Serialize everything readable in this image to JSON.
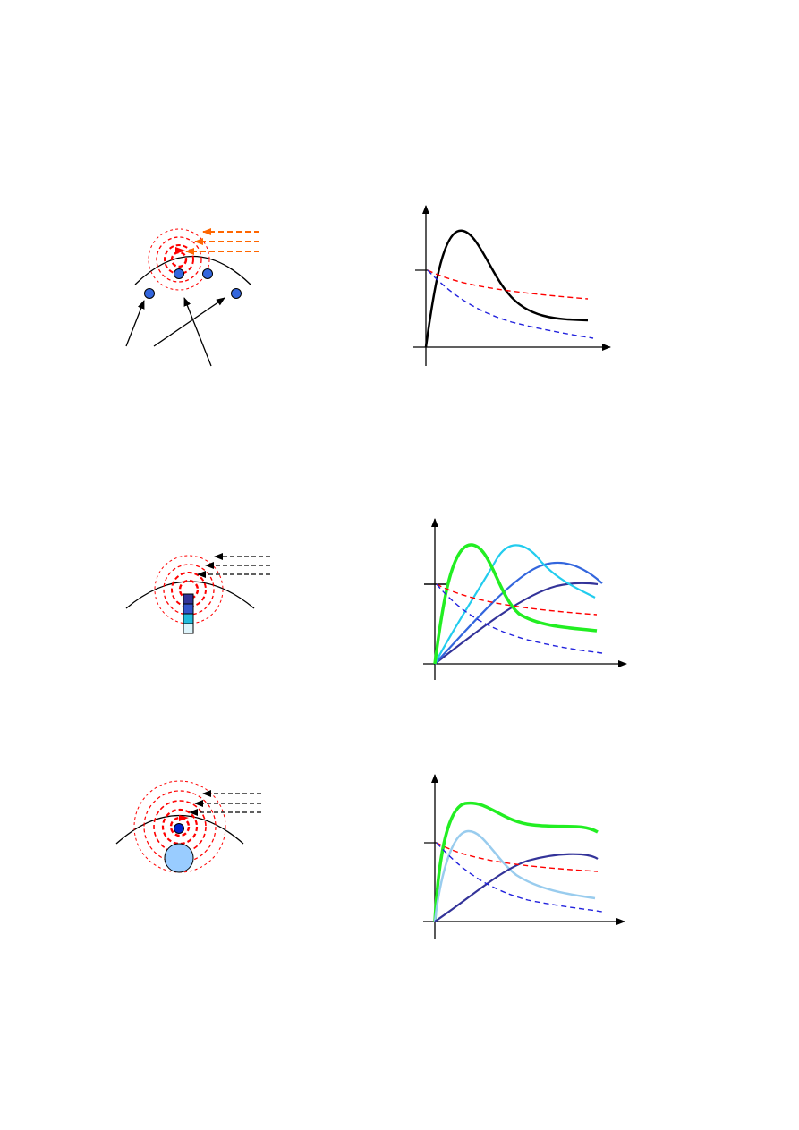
{
  "colors": {
    "background": "#ffffff",
    "outline": "#000000",
    "wave_red": "#ff0000",
    "arrow_orange": "#ff6600",
    "dot_blue": "#3366dd",
    "dot_blue_dark": "#0022cc",
    "curve_black": "#000000",
    "curve_red_dashed": "#ff0000",
    "curve_blue_dashed": "#2222dd",
    "curve_green": "#22ee22",
    "curve_cyan": "#22ccee",
    "curve_royal": "#3366dd",
    "curve_navy": "#333399",
    "curve_lightblue": "#99ccee",
    "stack_1": "#333399",
    "stack_2": "#3355cc",
    "stack_3": "#22bbdd",
    "stack_4": "#ddf4fb",
    "big_circle": "#99ccff"
  },
  "panels": [
    {
      "name": "panel-1",
      "illustration": {
        "wave_rings": 4,
        "incoming_arrows": 3,
        "incoming_arrow_color": "arrow_orange",
        "dots": 4,
        "pointer_arrows": 3
      },
      "graph": {
        "curves": [
          {
            "name": "black-peak",
            "color": "curve_black",
            "dashed": false
          },
          {
            "name": "red-dashed",
            "color": "curve_red_dashed",
            "dashed": true
          },
          {
            "name": "blue-dashed",
            "color": "curve_blue_dashed",
            "dashed": true
          }
        ]
      }
    },
    {
      "name": "panel-2",
      "illustration": {
        "wave_rings": 4,
        "incoming_arrows": 3,
        "incoming_arrow_color": "outline",
        "stacked_blocks": [
          "stack_1",
          "stack_2",
          "stack_3",
          "stack_4"
        ]
      },
      "graph": {
        "curves": [
          {
            "name": "green-peak",
            "color": "curve_green",
            "dashed": false
          },
          {
            "name": "cyan-peak",
            "color": "curve_cyan",
            "dashed": false
          },
          {
            "name": "royal-peak",
            "color": "curve_royal",
            "dashed": false
          },
          {
            "name": "navy-rise",
            "color": "curve_navy",
            "dashed": false
          },
          {
            "name": "red-dashed",
            "color": "curve_red_dashed",
            "dashed": true
          },
          {
            "name": "blue-dashed",
            "color": "curve_blue_dashed",
            "dashed": true
          }
        ]
      }
    },
    {
      "name": "panel-3",
      "illustration": {
        "wave_rings": 5,
        "incoming_arrows": 3,
        "incoming_arrow_color": "outline",
        "dots": 1,
        "big_circle": true
      },
      "graph": {
        "curves": [
          {
            "name": "green-plateau",
            "color": "curve_green",
            "dashed": false
          },
          {
            "name": "lightblue-peak",
            "color": "curve_lightblue",
            "dashed": false
          },
          {
            "name": "navy-rise",
            "color": "curve_navy",
            "dashed": false
          },
          {
            "name": "red-dashed",
            "color": "curve_red_dashed",
            "dashed": true
          },
          {
            "name": "blue-dashed",
            "color": "curve_blue_dashed",
            "dashed": true
          }
        ]
      }
    }
  ]
}
